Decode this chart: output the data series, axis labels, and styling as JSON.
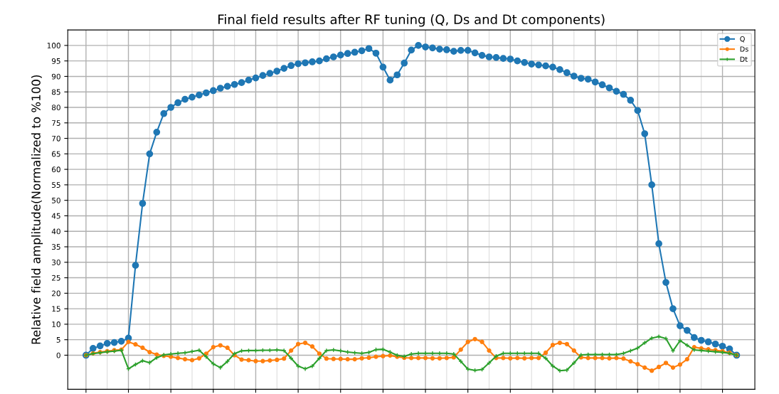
{
  "chart_data": {
    "type": "line",
    "title": "Final field results after RF tuning (Q, Ds and Dt components)",
    "ylabel": "Relative field amplitude(Normalized to %100)",
    "categories": [
      null,
      null,
      null,
      null,
      null,
      null,
      null,
      null,
      null,
      null,
      null,
      null,
      null,
      null,
      null,
      null,
      null,
      null,
      null,
      null,
      null,
      null,
      null,
      null,
      null,
      null,
      null,
      null,
      null,
      null,
      null,
      null,
      null,
      null,
      null,
      null,
      null,
      null,
      null,
      null,
      null,
      null,
      null,
      null,
      null,
      null,
      null,
      null,
      null,
      null,
      null,
      null,
      null,
      null,
      null,
      null,
      null,
      null,
      null,
      null,
      null,
      null,
      null,
      null,
      null,
      null,
      null,
      null,
      null,
      null,
      null,
      null,
      null,
      null,
      null,
      null,
      null,
      null,
      null,
      null,
      null,
      null,
      null,
      null,
      null,
      null,
      null,
      null,
      null,
      null,
      null,
      null,
      null
    ],
    "ylim": [
      -11,
      105
    ],
    "yticks": [
      0,
      5,
      10,
      15,
      20,
      25,
      30,
      35,
      40,
      45,
      50,
      55,
      60,
      65,
      70,
      75,
      80,
      85,
      90,
      95,
      100
    ],
    "tick_labels": "y",
    "grid": true,
    "legend": "top right",
    "series": [
      {
        "name": "Q",
        "color": "#1f77b4",
        "marker": "circle",
        "values": [
          0,
          2.2,
          3,
          3.8,
          4.1,
          4.5,
          5.5,
          29,
          49,
          65,
          72,
          78,
          80,
          81.5,
          82.6,
          83.3,
          84,
          84.7,
          85.4,
          86.2,
          86.8,
          87.4,
          88,
          88.8,
          89.5,
          90.3,
          91,
          91.7,
          92.6,
          93.5,
          94.1,
          94.4,
          94.7,
          95,
          95.7,
          96.3,
          96.9,
          97.4,
          97.8,
          98.3,
          99,
          97.5,
          93,
          88.8,
          90.5,
          94.3,
          98.5,
          100,
          99.5,
          99.2,
          98.8,
          98.6,
          98.1,
          98.4,
          98.4,
          97.6,
          96.8,
          96.3,
          96.1,
          95.8,
          95.6,
          95,
          94.5,
          94,
          93.7,
          93.4,
          93,
          92.2,
          91.2,
          90.1,
          89.4,
          89.1,
          88.2,
          87.3,
          86.3,
          85.2,
          84.2,
          82.3,
          79,
          71.5,
          55,
          36,
          23.5,
          15,
          9.5,
          8,
          5.7,
          4.8,
          4.3,
          3.6,
          2.9,
          2,
          0
        ]
      },
      {
        "name": "Ds",
        "color": "#ff7f0e",
        "marker": "circle",
        "values": [
          0,
          0.6,
          1,
          1.3,
          1.6,
          1.8,
          4.3,
          3.5,
          2.4,
          1,
          0.2,
          -0.2,
          -0.5,
          -0.9,
          -1.3,
          -1.6,
          -1,
          0.5,
          2.6,
          3.2,
          2.4,
          0,
          -1.4,
          -1.6,
          -1.9,
          -1.9,
          -1.7,
          -1.5,
          -1.1,
          1.5,
          3.6,
          4,
          2.8,
          0.5,
          -1.1,
          -1.2,
          -1.2,
          -1.3,
          -1.3,
          -1,
          -0.8,
          -0.5,
          -0.3,
          -0.1,
          -0.5,
          -0.8,
          -0.9,
          -0.9,
          -0.9,
          -1,
          -1,
          -0.9,
          -0.7,
          1.8,
          4.3,
          5.2,
          4.3,
          1.5,
          -0.9,
          -0.9,
          -1,
          -0.9,
          -1,
          -0.9,
          -0.9,
          0.8,
          3.3,
          4,
          3.6,
          1.5,
          -0.7,
          -0.9,
          -0.9,
          -0.9,
          -1,
          -0.9,
          -1.1,
          -2,
          -2.9,
          -4,
          -5,
          -3.8,
          -2.5,
          -4,
          -3,
          -1.3,
          2.6,
          2.2,
          1.9,
          1.6,
          1.3,
          0.8,
          0
        ]
      },
      {
        "name": "Dt",
        "color": "#2ca02c",
        "marker": "cross",
        "values": [
          0,
          0.5,
          0.8,
          1.1,
          1.3,
          1.6,
          -4.4,
          -3,
          -1.8,
          -2.4,
          -0.8,
          0.1,
          0.4,
          0.6,
          0.8,
          1.2,
          1.6,
          -0.5,
          -2.8,
          -4,
          -2,
          0.5,
          1.4,
          1.5,
          1.5,
          1.6,
          1.6,
          1.7,
          1.5,
          -1,
          -3.5,
          -4.4,
          -3.5,
          -1,
          1.5,
          1.7,
          1.4,
          1,
          0.8,
          0.6,
          0.9,
          1.8,
          1.9,
          1,
          0,
          -0.4,
          0.4,
          0.6,
          0.6,
          0.6,
          0.6,
          0.6,
          0.4,
          -2,
          -4.5,
          -4.9,
          -4.6,
          -2.5,
          -0.3,
          0.6,
          0.6,
          0.6,
          0.6,
          0.6,
          0.6,
          -1,
          -3.5,
          -5,
          -4.8,
          -2.5,
          0.1,
          0.2,
          0.2,
          0.2,
          0.2,
          0.2,
          0.6,
          1.4,
          2.3,
          4,
          5.5,
          6,
          5.4,
          1.4,
          4.7,
          3.2,
          1.7,
          1.5,
          1.3,
          1.1,
          0.9,
          0.6,
          0
        ]
      }
    ]
  }
}
